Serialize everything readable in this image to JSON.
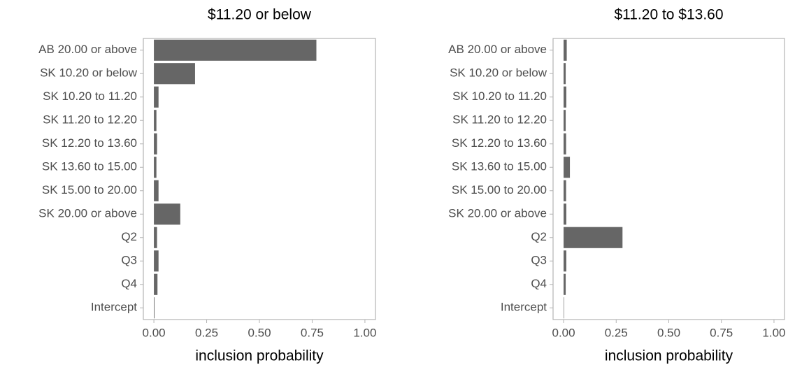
{
  "chart_data": [
    {
      "type": "barh",
      "title": "$11.20 or below",
      "x_label": "inclusion probability",
      "color": "#666666",
      "categories": [
        "AB 20.00 or above",
        "SK 10.20 or below",
        "SK 10.20 to 11.20",
        "SK 11.20 to 12.20",
        "SK 12.20 to 13.60",
        "SK 13.60 to 15.00",
        "SK 15.00 to 20.00",
        "SK 20.00 or above",
        "Q2",
        "Q3",
        "Q4",
        "Intercept"
      ],
      "values": [
        0.77,
        0.195,
        0.022,
        0.012,
        0.015,
        0.012,
        0.022,
        0.125,
        0.015,
        0.022,
        0.017,
        0.003
      ],
      "xlim": [
        -0.05,
        1.05
      ],
      "xticks": [
        {
          "value": 0,
          "label": "0.00"
        },
        {
          "value": 0.25,
          "label": "0.25"
        },
        {
          "value": 0.5,
          "label": "0.50"
        },
        {
          "value": 0.75,
          "label": "0.75"
        },
        {
          "value": 1,
          "label": "1.00"
        }
      ]
    },
    {
      "type": "barh",
      "title": "$11.20 to $13.60",
      "x_label": "inclusion probability",
      "color": "#666666",
      "categories": [
        "AB 20.00 or above",
        "SK 10.20 or below",
        "SK 10.20 to 11.20",
        "SK 11.20 to 12.20",
        "SK 12.20 to 13.60",
        "SK 13.60 to 15.00",
        "SK 15.00 to 20.00",
        "SK 20.00 or above",
        "Q2",
        "Q3",
        "Q4",
        "Intercept"
      ],
      "values": [
        0.015,
        0.01,
        0.013,
        0.01,
        0.012,
        0.03,
        0.012,
        0.013,
        0.28,
        0.013,
        0.01,
        0.002
      ],
      "xlim": [
        -0.05,
        1.05
      ],
      "xticks": [
        {
          "value": 0,
          "label": "0.00"
        },
        {
          "value": 0.25,
          "label": "0.25"
        },
        {
          "value": 0.5,
          "label": "0.50"
        },
        {
          "value": 0.75,
          "label": "0.75"
        },
        {
          "value": 1,
          "label": "1.00"
        }
      ]
    }
  ]
}
